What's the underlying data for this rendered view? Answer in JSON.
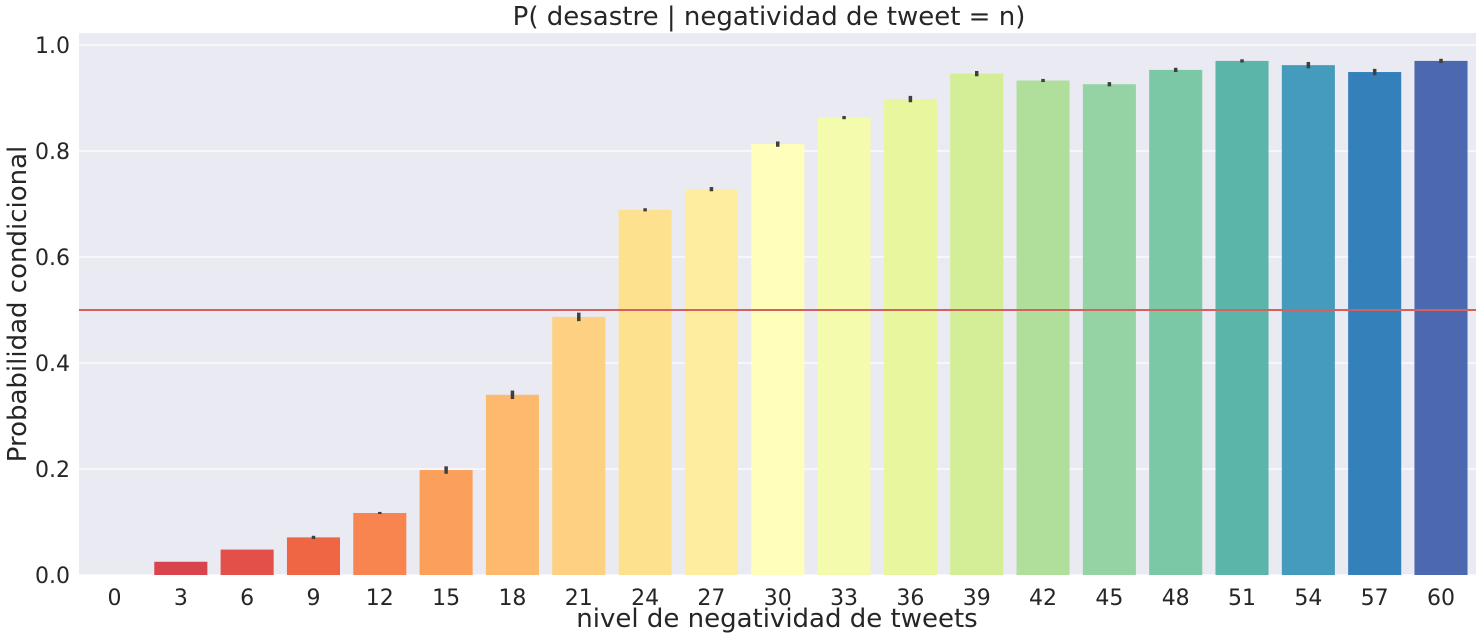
{
  "chart_data": {
    "type": "bar",
    "title": "P( desastre | negatividad de tweet = n)",
    "xlabel": "nivel de negatividad de tweets",
    "ylabel": "Probabilidad condicional",
    "categories": [
      "0",
      "3",
      "6",
      "9",
      "12",
      "15",
      "18",
      "21",
      "24",
      "27",
      "30",
      "33",
      "36",
      "39",
      "42",
      "45",
      "48",
      "51",
      "54",
      "57",
      "60"
    ],
    "values": [
      0.0,
      0.025,
      0.048,
      0.071,
      0.117,
      0.198,
      0.34,
      0.487,
      0.689,
      0.728,
      0.813,
      0.863,
      0.898,
      0.946,
      0.933,
      0.926,
      0.953,
      0.97,
      0.962,
      0.949,
      0.97
    ],
    "error": [
      0.0,
      0.0,
      0.0,
      0.003,
      0.002,
      0.007,
      0.008,
      0.008,
      0.003,
      0.004,
      0.005,
      0.003,
      0.006,
      0.005,
      0.003,
      0.004,
      0.004,
      0.003,
      0.006,
      0.006,
      0.004
    ],
    "bar_colors": [
      "#d53e4f",
      "#d8434e",
      "#e3504a",
      "#ef6645",
      "#f88550",
      "#fba05b",
      "#fdba6e",
      "#fed082",
      "#fee18e",
      "#feec9f",
      "#ffffbb",
      "#f4fbad",
      "#e8f69d",
      "#d3ee97",
      "#b0df9c",
      "#96d3a4",
      "#7ac8a4",
      "#5bb5a9",
      "#459bbb",
      "#3380bb",
      "#4c68ae"
    ],
    "yticks": [
      "0.0",
      "0.2",
      "0.4",
      "0.6",
      "0.8",
      "1.0"
    ],
    "ylim": [
      0,
      1.0
    ],
    "grid": true,
    "threshold_line": 0.5,
    "threshold_color": "#d65f5f",
    "background_color": "#eaeaf2"
  }
}
